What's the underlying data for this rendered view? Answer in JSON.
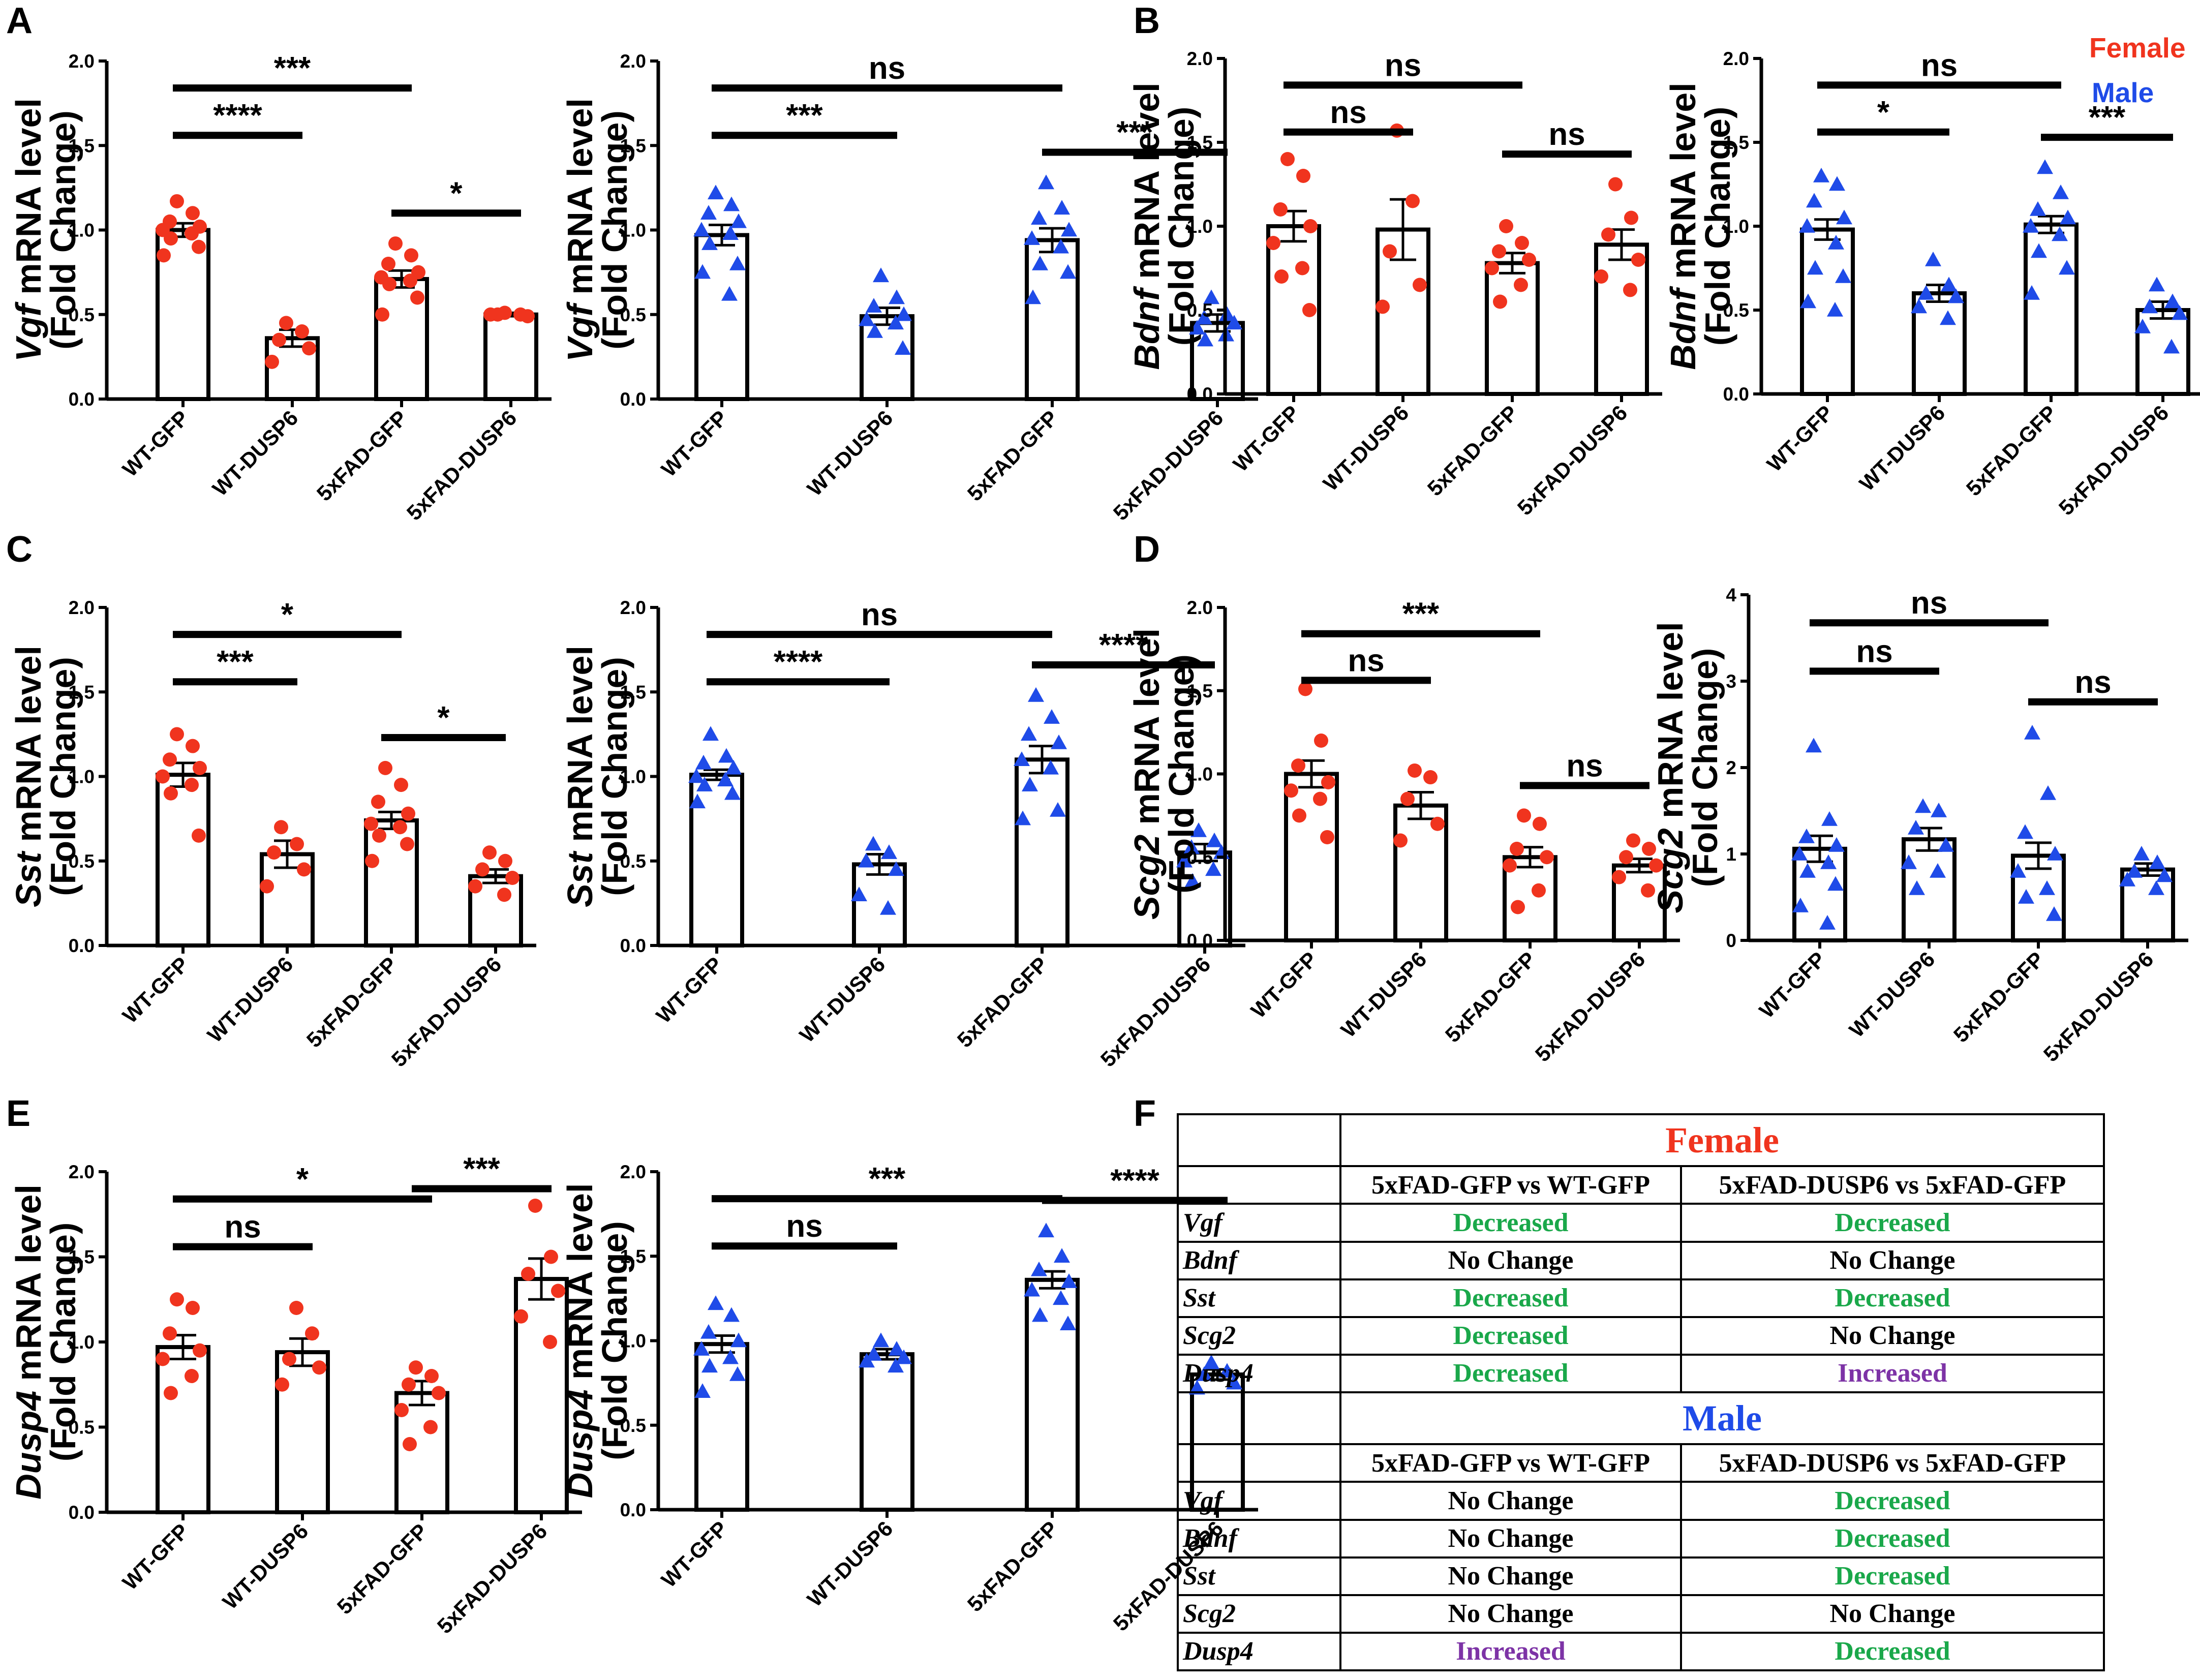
{
  "colors": {
    "female": "#f0341e",
    "male": "#1f4be8",
    "decreased": "#1aa84a",
    "increased": "#7d33a6",
    "no_change": "#000000",
    "text": "#000000"
  },
  "legend": {
    "female": "Female",
    "male": "Male"
  },
  "panel_letters": [
    "A",
    "B",
    "C",
    "D",
    "E",
    "F"
  ],
  "chart_data": [
    {
      "id": "A-female",
      "panel": "A",
      "type": "bar",
      "sex": "female",
      "marker": "circle",
      "gene": "Vgf",
      "ylabel_rest": " mRNA level",
      "ylabel2": "(Fold Change)",
      "categories": [
        "WT-GFP",
        "WT-DUSP6",
        "5xFAD-GFP",
        "5xFAD-DUSP6"
      ],
      "means": [
        1.0,
        0.36,
        0.71,
        0.5
      ],
      "sem": [
        0.04,
        0.05,
        0.05,
        0.01
      ],
      "points": [
        [
          1.17,
          1.1,
          1.05,
          1.02,
          1.0,
          0.98,
          0.95,
          0.9,
          0.85
        ],
        [
          0.45,
          0.4,
          0.35,
          0.3,
          0.22
        ],
        [
          0.92,
          0.85,
          0.8,
          0.75,
          0.72,
          0.7,
          0.68,
          0.6,
          0.5
        ],
        [
          0.51,
          0.5,
          0.5,
          0.49,
          0.5
        ]
      ],
      "ylim": [
        0,
        2.0
      ],
      "yticks": [
        "0.0",
        "0.5",
        "1.0",
        "1.5",
        "2.0"
      ],
      "comparisons": [
        {
          "from": 0,
          "to": 1,
          "label": "****",
          "level": 0.0
        },
        {
          "from": 0,
          "to": 2,
          "label": "***",
          "level": 0.0
        },
        {
          "from": 2,
          "to": 3,
          "label": "*",
          "level": 0.0
        }
      ]
    },
    {
      "id": "A-male",
      "panel": "A",
      "type": "bar",
      "sex": "male",
      "marker": "triangle",
      "gene": "Vgf",
      "ylabel_rest": " mRNA level",
      "ylabel2": "(Fold Change)",
      "categories": [
        "WT-GFP",
        "WT-DUSP6",
        "5xFAD-GFP",
        "5xFAD-DUSP6"
      ],
      "means": [
        0.97,
        0.49,
        0.94,
        0.45
      ],
      "sem": [
        0.06,
        0.05,
        0.07,
        0.05
      ],
      "points": [
        [
          1.22,
          1.15,
          1.1,
          1.05,
          1.0,
          0.98,
          0.92,
          0.8,
          0.75,
          0.62
        ],
        [
          0.73,
          0.6,
          0.55,
          0.5,
          0.47,
          0.45,
          0.4,
          0.3
        ],
        [
          1.28,
          1.13,
          1.07,
          1.0,
          0.95,
          0.9,
          0.8,
          0.75,
          0.6
        ],
        [
          0.6,
          0.5,
          0.48,
          0.45,
          0.42,
          0.38,
          0.35
        ]
      ],
      "ylim": [
        0,
        2.0
      ],
      "yticks": [
        "0.0",
        "0.5",
        "1.0",
        "1.5",
        "2.0"
      ],
      "comparisons": [
        {
          "from": 0,
          "to": 1,
          "label": "***"
        },
        {
          "from": 0,
          "to": 2,
          "label": "ns"
        },
        {
          "from": 2,
          "to": 3,
          "label": "***"
        }
      ]
    },
    {
      "id": "B-female",
      "panel": "B",
      "type": "bar",
      "sex": "female",
      "marker": "circle",
      "gene": "Bdnf",
      "ylabel_rest": " mRNA level",
      "ylabel2": "(Fold Change)",
      "categories": [
        "WT-GFP",
        "WT-DUSP6",
        "5xFAD-GFP",
        "5xFAD-DUSP6"
      ],
      "means": [
        1.0,
        0.98,
        0.78,
        0.89
      ],
      "sem": [
        0.09,
        0.18,
        0.06,
        0.09
      ],
      "points": [
        [
          1.4,
          1.3,
          1.1,
          1.0,
          0.9,
          0.75,
          0.7,
          0.5
        ],
        [
          1.57,
          1.15,
          0.85,
          0.65,
          0.52
        ],
        [
          1.0,
          0.9,
          0.85,
          0.8,
          0.75,
          0.65,
          0.55
        ],
        [
          1.25,
          1.05,
          0.95,
          0.8,
          0.7,
          0.62
        ]
      ],
      "ylim": [
        0,
        2.0
      ],
      "yticks": [
        "0.0",
        "0.5",
        "1.0",
        "1.5",
        "2.0"
      ],
      "comparisons": [
        {
          "from": 0,
          "to": 1,
          "label": "ns"
        },
        {
          "from": 0,
          "to": 2,
          "label": "ns"
        },
        {
          "from": 2,
          "to": 3,
          "label": "ns"
        }
      ]
    },
    {
      "id": "B-male",
      "panel": "B",
      "type": "bar",
      "sex": "male",
      "marker": "triangle",
      "gene": "Bdnf",
      "ylabel_rest": " mRNA level",
      "ylabel2": "(Fold Change)",
      "categories": [
        "WT-GFP",
        "WT-DUSP6",
        "5xFAD-GFP",
        "5xFAD-DUSP6"
      ],
      "means": [
        0.98,
        0.6,
        1.01,
        0.5
      ],
      "sem": [
        0.06,
        0.05,
        0.05,
        0.05
      ],
      "points": [
        [
          1.3,
          1.25,
          1.15,
          1.05,
          1.0,
          0.9,
          0.75,
          0.7,
          0.55,
          0.5
        ],
        [
          0.8,
          0.65,
          0.6,
          0.58,
          0.52,
          0.45
        ],
        [
          1.35,
          1.2,
          1.1,
          1.05,
          1.0,
          0.95,
          0.85,
          0.75,
          0.6
        ],
        [
          0.65,
          0.55,
          0.52,
          0.48,
          0.4,
          0.28
        ]
      ],
      "ylim": [
        0,
        2.0
      ],
      "yticks": [
        "0.0",
        "0.5",
        "1.0",
        "1.5",
        "2.0"
      ],
      "comparisons": [
        {
          "from": 0,
          "to": 1,
          "label": "*"
        },
        {
          "from": 0,
          "to": 2,
          "label": "ns"
        },
        {
          "from": 2,
          "to": 3,
          "label": "***"
        }
      ]
    },
    {
      "id": "C-female",
      "panel": "C",
      "type": "bar",
      "sex": "female",
      "marker": "circle",
      "gene": "Sst",
      "ylabel_rest": " mRNA level",
      "ylabel2": "(Fold Change)",
      "categories": [
        "WT-GFP",
        "WT-DUSP6",
        "5xFAD-GFP",
        "5xFAD-DUSP6"
      ],
      "means": [
        1.01,
        0.54,
        0.74,
        0.41
      ],
      "sem": [
        0.07,
        0.08,
        0.05,
        0.04
      ],
      "points": [
        [
          1.25,
          1.18,
          1.1,
          1.05,
          1.0,
          0.95,
          0.9,
          0.65
        ],
        [
          0.7,
          0.6,
          0.55,
          0.45,
          0.35
        ],
        [
          1.05,
          0.95,
          0.85,
          0.78,
          0.72,
          0.7,
          0.65,
          0.6,
          0.5
        ],
        [
          0.55,
          0.5,
          0.45,
          0.4,
          0.35,
          0.3
        ]
      ],
      "ylim": [
        0,
        2.0
      ],
      "yticks": [
        "0.0",
        "0.5",
        "1.0",
        "1.5",
        "2.0"
      ],
      "comparisons": [
        {
          "from": 0,
          "to": 1,
          "label": "***"
        },
        {
          "from": 0,
          "to": 2,
          "label": "*"
        },
        {
          "from": 2,
          "to": 3,
          "label": "*"
        }
      ]
    },
    {
      "id": "C-male",
      "panel": "C",
      "type": "bar",
      "sex": "male",
      "marker": "triangle",
      "gene": "Sst",
      "ylabel_rest": " mRNA level",
      "ylabel2": "(Fold Change)",
      "categories": [
        "WT-GFP",
        "WT-DUSP6",
        "5xFAD-GFP",
        "5xFAD-DUSP6"
      ],
      "means": [
        1.01,
        0.48,
        1.1,
        0.55
      ],
      "sem": [
        0.03,
        0.06,
        0.08,
        0.05
      ],
      "points": [
        [
          1.25,
          1.12,
          1.08,
          1.05,
          1.0,
          0.98,
          0.95,
          0.9,
          0.85
        ],
        [
          0.6,
          0.55,
          0.5,
          0.45,
          0.3,
          0.22
        ],
        [
          1.48,
          1.35,
          1.25,
          1.2,
          1.1,
          1.05,
          0.95,
          0.8,
          0.75
        ],
        [
          0.68,
          0.62,
          0.58,
          0.55,
          0.5,
          0.45,
          0.38
        ]
      ],
      "ylim": [
        0,
        2.0
      ],
      "yticks": [
        "0.0",
        "0.5",
        "1.0",
        "1.5",
        "2.0"
      ],
      "comparisons": [
        {
          "from": 0,
          "to": 1,
          "label": "****"
        },
        {
          "from": 0,
          "to": 2,
          "label": "ns"
        },
        {
          "from": 2,
          "to": 3,
          "label": "****"
        }
      ]
    },
    {
      "id": "D-female",
      "panel": "D",
      "type": "bar",
      "sex": "female",
      "marker": "circle",
      "gene": "Scg2",
      "ylabel_rest": " mRNA level",
      "ylabel2": "(Fold Change)",
      "categories": [
        "WT-GFP",
        "WT-DUSP6",
        "5xFAD-GFP",
        "5xFAD-DUSP6"
      ],
      "means": [
        1.0,
        0.81,
        0.5,
        0.45
      ],
      "sem": [
        0.08,
        0.08,
        0.06,
        0.04
      ],
      "points": [
        [
          1.51,
          1.2,
          1.05,
          0.95,
          0.9,
          0.85,
          0.75,
          0.62
        ],
        [
          1.02,
          0.98,
          0.85,
          0.7,
          0.6
        ],
        [
          0.75,
          0.7,
          0.55,
          0.5,
          0.45,
          0.3,
          0.2
        ],
        [
          0.6,
          0.55,
          0.5,
          0.45,
          0.38,
          0.3
        ]
      ],
      "ylim": [
        0,
        2.0
      ],
      "yticks": [
        "0.0",
        "0.5",
        "1.0",
        "1.5",
        "2.0"
      ],
      "comparisons": [
        {
          "from": 0,
          "to": 1,
          "label": "ns"
        },
        {
          "from": 0,
          "to": 2,
          "label": "***"
        },
        {
          "from": 2,
          "to": 3,
          "label": "ns"
        }
      ]
    },
    {
      "id": "D-male",
      "panel": "D",
      "type": "bar",
      "sex": "male",
      "marker": "triangle",
      "gene": "Scg2",
      "ylabel_rest": " mRNA level",
      "ylabel2": "(Fold Change)",
      "categories": [
        "WT-GFP",
        "WT-DUSP6",
        "5xFAD-GFP",
        "5xFAD-DUSP6"
      ],
      "means": [
        1.06,
        1.17,
        0.98,
        0.82
      ],
      "sem": [
        0.15,
        0.13,
        0.15,
        0.07
      ],
      "points": [
        [
          2.25,
          1.4,
          1.2,
          1.1,
          1.0,
          0.9,
          0.8,
          0.65,
          0.4,
          0.2
        ],
        [
          1.55,
          1.5,
          1.3,
          1.1,
          0.9,
          0.8,
          0.6
        ],
        [
          2.4,
          1.7,
          1.25,
          1.0,
          0.8,
          0.6,
          0.5,
          0.3
        ],
        [
          1.0,
          0.9,
          0.8,
          0.75,
          0.7,
          0.6
        ]
      ],
      "ylim": [
        0,
        4
      ],
      "yticks": [
        "0",
        "1",
        "2",
        "3",
        "4"
      ],
      "comparisons": [
        {
          "from": 0,
          "to": 1,
          "label": "ns"
        },
        {
          "from": 0,
          "to": 2,
          "label": "ns"
        },
        {
          "from": 2,
          "to": 3,
          "label": "ns"
        }
      ]
    },
    {
      "id": "E-female",
      "panel": "E",
      "type": "bar",
      "sex": "female",
      "marker": "circle",
      "gene": "Dusp4",
      "ylabel_rest": " mRNA level",
      "ylabel2": "(Fold Change)",
      "categories": [
        "WT-GFP",
        "WT-DUSP6",
        "5xFAD-GFP",
        "5xFAD-DUSP6"
      ],
      "means": [
        0.97,
        0.94,
        0.7,
        1.37
      ],
      "sem": [
        0.07,
        0.08,
        0.07,
        0.12
      ],
      "points": [
        [
          1.25,
          1.2,
          1.05,
          0.95,
          0.9,
          0.8,
          0.7
        ],
        [
          1.2,
          1.05,
          0.9,
          0.85,
          0.75
        ],
        [
          0.85,
          0.8,
          0.75,
          0.7,
          0.6,
          0.5,
          0.4
        ],
        [
          1.8,
          1.5,
          1.4,
          1.3,
          1.15,
          1.0
        ]
      ],
      "ylim": [
        0,
        2.0
      ],
      "yticks": [
        "0.0",
        "0.5",
        "1.0",
        "1.5",
        "2.0"
      ],
      "comparisons": [
        {
          "from": 0,
          "to": 1,
          "label": "ns"
        },
        {
          "from": 0,
          "to": 2,
          "label": "*"
        },
        {
          "from": 2,
          "to": 3,
          "label": "***"
        }
      ]
    },
    {
      "id": "E-male",
      "panel": "E",
      "type": "bar",
      "sex": "male",
      "marker": "triangle",
      "gene": "Dusp4",
      "ylabel_rest": " mRNA level",
      "ylabel2": "(Fold Change)",
      "categories": [
        "WT-GFP",
        "WT-DUSP6",
        "5xFAD-GFP",
        "5xFAD-DUSP6"
      ],
      "means": [
        0.98,
        0.92,
        1.36,
        0.8
      ],
      "sem": [
        0.05,
        0.03,
        0.05,
        0.03
      ],
      "points": [
        [
          1.22,
          1.15,
          1.05,
          1.0,
          0.95,
          0.9,
          0.85,
          0.8,
          0.7
        ],
        [
          1.0,
          0.95,
          0.92,
          0.9,
          0.88,
          0.85
        ],
        [
          1.65,
          1.5,
          1.42,
          1.35,
          1.3,
          1.25,
          1.15,
          1.1
        ],
        [
          0.87,
          0.82,
          0.8,
          0.75,
          0.72
        ]
      ],
      "ylim": [
        0,
        2.0
      ],
      "yticks": [
        "0.0",
        "0.5",
        "1.0",
        "1.5",
        "2.0"
      ],
      "comparisons": [
        {
          "from": 0,
          "to": 1,
          "label": "ns"
        },
        {
          "from": 0,
          "to": 2,
          "label": "***"
        },
        {
          "from": 2,
          "to": 3,
          "label": "****"
        }
      ]
    },
    {
      "id": "F",
      "panel": "F",
      "type": "table",
      "columns": [
        "5xFAD-GFP vs WT-GFP",
        "5xFAD-DUSP6 vs 5xFAD-GFP"
      ],
      "sections": [
        {
          "sex": "Female",
          "rows": [
            {
              "gene": "Vgf",
              "values": [
                "Decreased",
                "Decreased"
              ]
            },
            {
              "gene": "Bdnf",
              "values": [
                "No Change",
                "No Change"
              ]
            },
            {
              "gene": "Sst",
              "values": [
                "Decreased",
                "Decreased"
              ]
            },
            {
              "gene": "Scg2",
              "values": [
                "Decreased",
                "No Change"
              ]
            },
            {
              "gene": "Dusp4",
              "values": [
                "Decreased",
                "Increased"
              ]
            }
          ]
        },
        {
          "sex": "Male",
          "rows": [
            {
              "gene": "Vgf",
              "values": [
                "No Change",
                "Decreased"
              ]
            },
            {
              "gene": "Bdnf",
              "values": [
                "No Change",
                "Decreased"
              ]
            },
            {
              "gene": "Sst",
              "values": [
                "No Change",
                "Decreased"
              ]
            },
            {
              "gene": "Scg2",
              "values": [
                "No Change",
                "No Change"
              ]
            },
            {
              "gene": "Dusp4",
              "values": [
                "Increased",
                "Decreased"
              ]
            }
          ]
        }
      ]
    }
  ]
}
